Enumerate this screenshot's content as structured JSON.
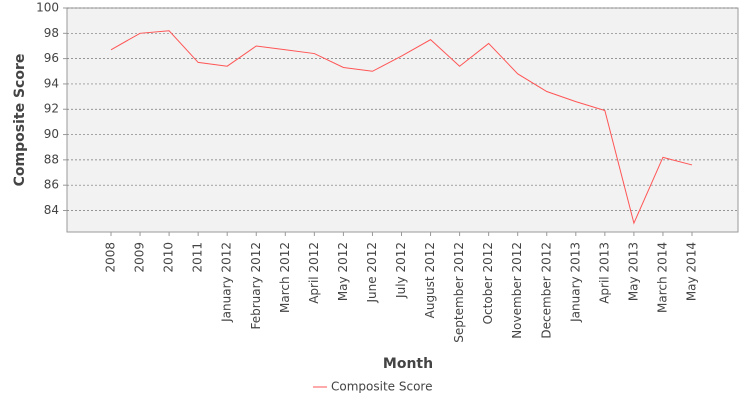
{
  "chart_data": {
    "type": "line",
    "x_label": "Month",
    "y_label": "Composite Score",
    "categories": [
      "2008",
      "2009",
      "2010",
      "2011",
      "January 2012",
      "February 2012",
      "March 2012",
      "April 2012",
      "May 2012",
      "June 2012",
      "July 2012",
      "August 2012",
      "September 2012",
      "October 2012",
      "November 2012",
      "December 2012",
      "January 2013",
      "April 2013",
      "May 2013",
      "March 2014",
      "May 2014"
    ],
    "series": [
      {
        "name": "Composite Score",
        "color": "#ff5555",
        "values": [
          96.7,
          98.0,
          98.2,
          95.7,
          95.4,
          97.0,
          96.7,
          96.4,
          95.3,
          95.0,
          96.2,
          97.5,
          95.4,
          97.2,
          94.8,
          93.4,
          92.6,
          91.9,
          83.0,
          88.2,
          87.6
        ]
      }
    ],
    "ylim": [
      82.3,
      100
    ],
    "yticks": [
      84,
      86,
      88,
      90,
      92,
      94,
      96,
      98,
      100
    ],
    "grid": true,
    "legend": "bottom"
  }
}
